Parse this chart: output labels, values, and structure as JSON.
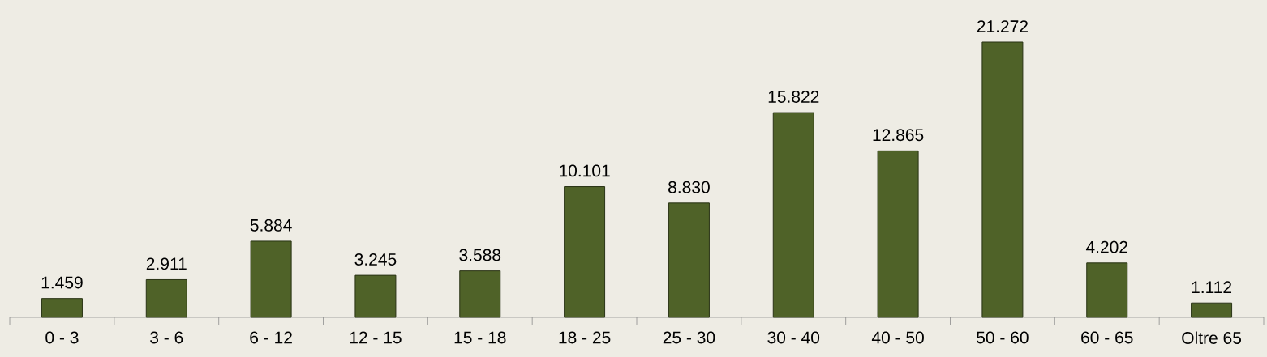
{
  "chart_data": {
    "type": "bar",
    "categories": [
      "0 - 3",
      "3 - 6",
      "6 - 12",
      "12 - 15",
      "15 - 18",
      "18 - 25",
      "25 - 30",
      "30 - 40",
      "40 - 50",
      "50 - 60",
      "60 - 65",
      "Oltre 65"
    ],
    "values": [
      1459,
      2911,
      5884,
      3245,
      3588,
      10101,
      8830,
      15822,
      12865,
      21272,
      4202,
      1112
    ],
    "value_labels": [
      "1.459",
      "2.911",
      "5.884",
      "3.245",
      "3.588",
      "10.101",
      "8.830",
      "15.822",
      "12.865",
      "21.272",
      "4.202",
      "1.112"
    ],
    "color": "#4f6228"
  }
}
